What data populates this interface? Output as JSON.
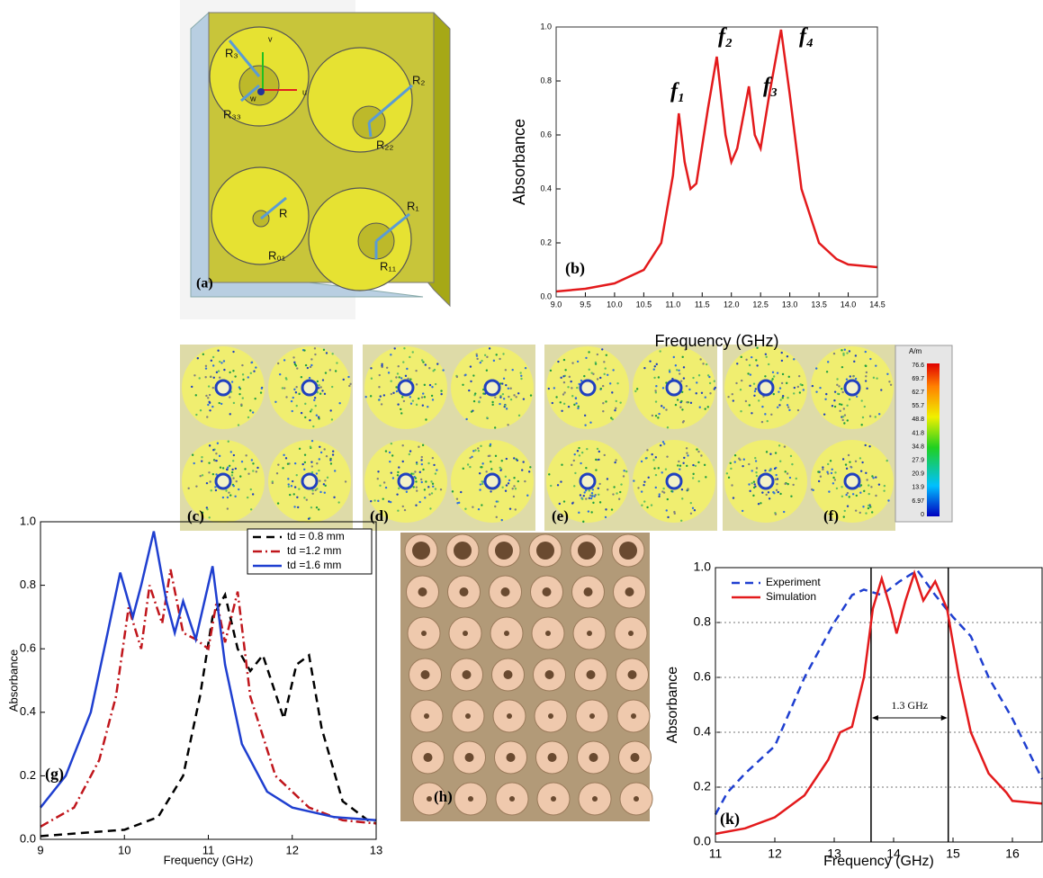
{
  "panels": {
    "a": {
      "label": "(a)",
      "labels": [
        "R₃",
        "R₃₃",
        "R₂",
        "R₂₂",
        "R",
        "R₀₁",
        "R₁",
        "R₁₁",
        "v",
        "u",
        "w"
      ]
    },
    "fields": {
      "labels": [
        "(c)",
        "(d)",
        "(e)",
        "(f)"
      ],
      "colorbar": {
        "unit": "A/m",
        "ticks": [
          "76.6",
          "69.7",
          "62.7",
          "55.7",
          "48.8",
          "41.8",
          "34.8",
          "27.9",
          "20.9",
          "13.9",
          "6.97",
          "0"
        ]
      }
    },
    "h": {
      "label": "(h)"
    }
  },
  "chart_data": [
    {
      "type": "line",
      "panel_label": "(b)",
      "xlabel": "Frequency (GHz)",
      "ylabel": "Absorbance",
      "annotations": [
        "f₁",
        "f₂",
        "f₃",
        "f₄"
      ],
      "color": "#e31a1c",
      "grid": false,
      "x": [
        9.0,
        9.5,
        10.0,
        10.5,
        10.8,
        11.0,
        11.1,
        11.2,
        11.3,
        11.4,
        11.6,
        11.75,
        11.9,
        12.0,
        12.1,
        12.3,
        12.4,
        12.5,
        12.65,
        12.85,
        13.0,
        13.2,
        13.5,
        13.8,
        14.0,
        14.5
      ],
      "values": [
        0.02,
        0.03,
        0.05,
        0.1,
        0.2,
        0.45,
        0.68,
        0.5,
        0.4,
        0.42,
        0.7,
        0.89,
        0.6,
        0.5,
        0.55,
        0.78,
        0.6,
        0.55,
        0.75,
        0.99,
        0.75,
        0.4,
        0.2,
        0.14,
        0.12,
        0.11
      ],
      "xlim": [
        9.0,
        14.5
      ],
      "xticks": [
        {
          "value": 9,
          "label": "9.0"
        },
        9.5,
        {
          "value": 10,
          "label": "10.0"
        },
        10.5,
        {
          "value": 11,
          "label": "11.0"
        },
        11.5,
        {
          "value": 12,
          "label": "12.0"
        },
        12.5,
        {
          "value": 13,
          "label": "13.0"
        },
        13.5,
        {
          "value": 14,
          "label": "14.0"
        },
        14.5
      ],
      "ylim": [
        0,
        1.0
      ],
      "yticks": [
        {
          "value": 0,
          "label": "0.0"
        },
        0.2,
        0.4,
        0.6,
        0.8,
        {
          "value": 1,
          "label": "1.0"
        }
      ]
    },
    {
      "type": "line",
      "panel_label": "(g)",
      "xlabel": "Frequency (GHz)",
      "ylabel": "Absorbance",
      "grid": false,
      "legend": "upper right",
      "series": [
        {
          "name": "td = 0.8 mm",
          "color": "#000000",
          "dash": "dashed",
          "x": [
            9,
            9.5,
            10,
            10.4,
            10.7,
            10.9,
            11.05,
            11.2,
            11.35,
            11.5,
            11.65,
            11.75,
            11.9,
            12.05,
            12.2,
            12.35,
            12.6,
            12.9,
            13
          ],
          "values": [
            0.01,
            0.02,
            0.03,
            0.07,
            0.2,
            0.45,
            0.7,
            0.77,
            0.6,
            0.53,
            0.58,
            0.5,
            0.38,
            0.55,
            0.58,
            0.35,
            0.12,
            0.06,
            0.05
          ]
        },
        {
          "name": "td =1.2 mm",
          "color": "#c0161c",
          "dash": "dashdot",
          "x": [
            9,
            9.4,
            9.7,
            9.9,
            10.05,
            10.2,
            10.3,
            10.45,
            10.55,
            10.7,
            10.85,
            11.0,
            11.1,
            11.2,
            11.35,
            11.5,
            11.8,
            12.2,
            12.6,
            13
          ],
          "values": [
            0.04,
            0.1,
            0.25,
            0.45,
            0.73,
            0.6,
            0.8,
            0.68,
            0.85,
            0.65,
            0.63,
            0.6,
            0.75,
            0.62,
            0.78,
            0.45,
            0.2,
            0.1,
            0.06,
            0.05
          ]
        },
        {
          "name": "td =1.6 mm",
          "color": "#1f3fd0",
          "dash": "solid",
          "x": [
            9,
            9.3,
            9.6,
            9.8,
            9.95,
            10.1,
            10.2,
            10.35,
            10.5,
            10.6,
            10.7,
            10.85,
            11.05,
            11.2,
            11.4,
            11.7,
            12,
            12.5,
            13
          ],
          "values": [
            0.1,
            0.2,
            0.4,
            0.65,
            0.84,
            0.7,
            0.8,
            0.97,
            0.75,
            0.65,
            0.75,
            0.63,
            0.86,
            0.55,
            0.3,
            0.15,
            0.1,
            0.07,
            0.06
          ]
        }
      ],
      "xlim": [
        9,
        13
      ],
      "xticks": [
        9,
        10,
        11,
        12,
        13
      ],
      "ylim": [
        0,
        1.0
      ],
      "yticks": [
        {
          "value": 0,
          "label": "0.0"
        },
        0.2,
        0.4,
        0.6,
        0.8,
        {
          "value": 1,
          "label": "1.0"
        }
      ]
    },
    {
      "type": "line",
      "panel_label": "(k)",
      "xlabel": "Frequency (GHz)",
      "ylabel": "Absorbance",
      "grid": true,
      "legend": "upper left",
      "annotations": [
        "1.3 GHz"
      ],
      "vlines": [
        13.62,
        14.92
      ],
      "series": [
        {
          "name": "Experiment",
          "color": "#1f3fd0",
          "dash": "dashed",
          "x": [
            11,
            11.2,
            11.5,
            12,
            12.5,
            13,
            13.3,
            13.5,
            13.8,
            14.1,
            14.4,
            14.7,
            15,
            15.3,
            15.6,
            16,
            16.5
          ],
          "values": [
            0.1,
            0.18,
            0.25,
            0.35,
            0.6,
            0.8,
            0.9,
            0.92,
            0.9,
            0.95,
            0.99,
            0.9,
            0.82,
            0.75,
            0.6,
            0.45,
            0.23
          ]
        },
        {
          "name": "Simulation",
          "color": "#e31a1c",
          "dash": "solid",
          "x": [
            11,
            11.5,
            12,
            12.5,
            12.9,
            13.1,
            13.3,
            13.5,
            13.65,
            13.8,
            13.95,
            14.05,
            14.2,
            14.35,
            14.5,
            14.7,
            14.9,
            15.1,
            15.3,
            15.6,
            15.9,
            16,
            16.5
          ],
          "values": [
            0.03,
            0.05,
            0.09,
            0.17,
            0.3,
            0.4,
            0.42,
            0.6,
            0.85,
            0.96,
            0.85,
            0.76,
            0.88,
            0.98,
            0.88,
            0.95,
            0.85,
            0.6,
            0.4,
            0.25,
            0.18,
            0.15,
            0.14
          ]
        }
      ],
      "xlim": [
        11,
        16.5
      ],
      "xticks": [
        11,
        12,
        13,
        14,
        15,
        16
      ],
      "ylim": [
        0,
        1.0
      ],
      "yticks": [
        {
          "value": 0,
          "label": "0.0"
        },
        0.2,
        0.4,
        0.6,
        0.8,
        {
          "value": 1,
          "label": "1.0"
        }
      ]
    }
  ]
}
